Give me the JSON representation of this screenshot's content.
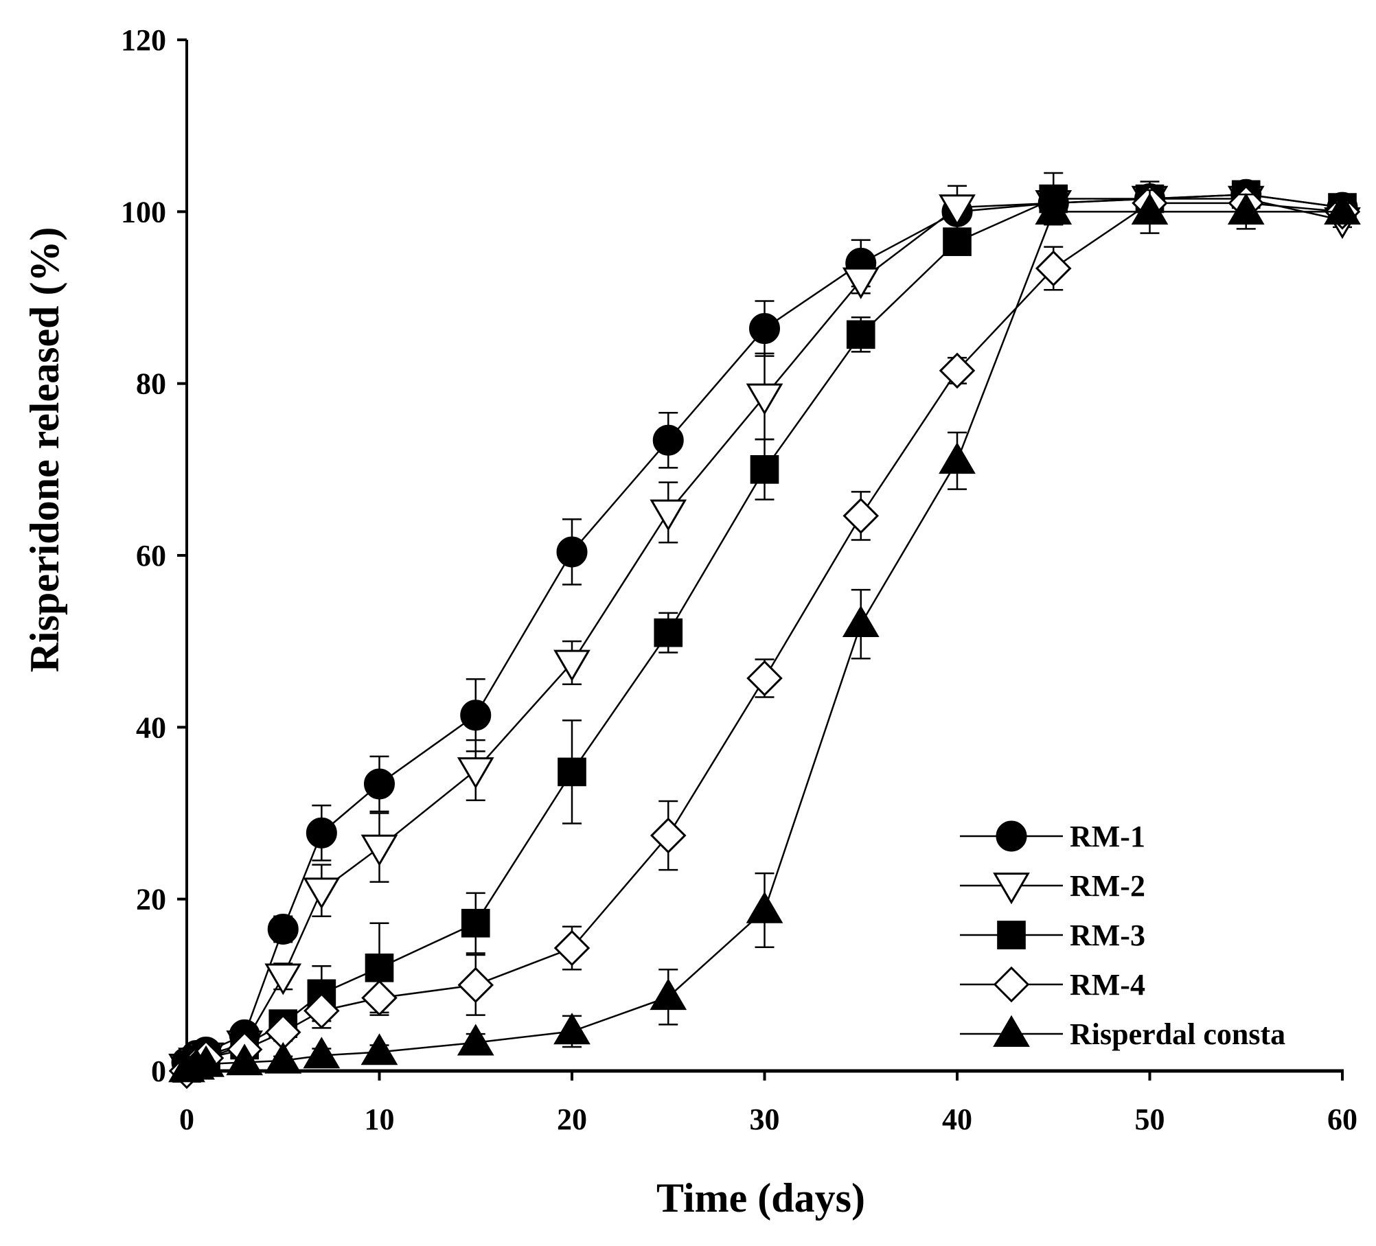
{
  "chart_data": {
    "type": "line",
    "title": "",
    "xlabel": "Time (days)",
    "ylabel": "Risperidone released (%)",
    "xlim": [
      0,
      60
    ],
    "ylim": [
      0,
      120
    ],
    "xticks": [
      0,
      10,
      20,
      30,
      40,
      50,
      60
    ],
    "yticks": [
      0,
      20,
      40,
      60,
      80,
      100,
      120
    ],
    "grid": false,
    "legend_position": "bottom-right",
    "series": [
      {
        "name": "RM-1",
        "marker": "circle-filled",
        "x": [
          0,
          0.5,
          1,
          3,
          5,
          7,
          10,
          15,
          20,
          25,
          30,
          35,
          40,
          45,
          50,
          55,
          60
        ],
        "y": [
          1.0,
          1.8,
          2.2,
          4.2,
          16.5,
          27.7,
          33.4,
          41.4,
          60.4,
          73.4,
          86.4,
          94.0,
          100.0,
          101.0,
          101.5,
          102.0,
          100.5
        ],
        "err": [
          0.5,
          0.5,
          0.5,
          0.8,
          1.5,
          3.2,
          3.2,
          4.2,
          3.8,
          3.2,
          3.2,
          2.7,
          0.7,
          1.5,
          1.5,
          0.8,
          0.8
        ]
      },
      {
        "name": "RM-2",
        "marker": "triangle-down-open",
        "x": [
          0,
          0.5,
          1,
          3,
          5,
          7,
          10,
          15,
          20,
          25,
          30,
          35,
          40,
          45,
          50,
          55,
          60
        ],
        "y": [
          0.5,
          1.2,
          1.8,
          3.2,
          11.0,
          21.0,
          26.0,
          35.0,
          47.5,
          65.0,
          78.5,
          92.0,
          100.5,
          101.0,
          101.5,
          101.5,
          99.0
        ],
        "err": [
          0.3,
          0.4,
          0.5,
          0.7,
          1.5,
          3.0,
          4.0,
          3.5,
          2.5,
          3.5,
          5.0,
          1.5,
          2.5,
          1.5,
          1.5,
          1.0,
          0.8
        ]
      },
      {
        "name": "RM-3",
        "marker": "square-filled",
        "x": [
          0,
          0.5,
          1,
          3,
          5,
          7,
          10,
          15,
          20,
          25,
          30,
          35,
          40,
          45,
          50,
          55,
          60
        ],
        "y": [
          0.3,
          1.0,
          1.5,
          3.0,
          5.5,
          9.0,
          12.0,
          17.2,
          34.8,
          51.0,
          70.0,
          85.7,
          96.5,
          101.5,
          101.5,
          102.0,
          100.5
        ],
        "err": [
          0.3,
          0.3,
          0.4,
          0.8,
          1.2,
          3.2,
          5.2,
          3.5,
          6.0,
          2.3,
          3.5,
          2.0,
          1.0,
          3.0,
          2.0,
          1.0,
          1.0
        ]
      },
      {
        "name": "RM-4",
        "marker": "diamond-open",
        "x": [
          0,
          0.5,
          1,
          3,
          5,
          7,
          10,
          15,
          20,
          25,
          30,
          35,
          40,
          45,
          50,
          55,
          60
        ],
        "y": [
          0.0,
          0.8,
          1.5,
          2.5,
          4.5,
          7.0,
          8.5,
          10.0,
          14.3,
          27.4,
          45.7,
          64.6,
          81.5,
          93.4,
          101.0,
          101.0,
          100.0
        ],
        "err": [
          0.2,
          0.3,
          0.4,
          0.5,
          1.0,
          2.0,
          2.0,
          3.5,
          2.5,
          4.0,
          2.2,
          2.8,
          1.5,
          2.5,
          2.0,
          1.5,
          1.0
        ]
      },
      {
        "name": "Risperdal consta",
        "marker": "triangle-up-filled",
        "x": [
          0,
          0.5,
          1,
          3,
          5,
          7,
          10,
          15,
          20,
          25,
          30,
          35,
          40,
          45,
          50,
          55,
          60
        ],
        "y": [
          0.2,
          0.5,
          0.8,
          1.0,
          1.2,
          1.8,
          2.2,
          3.3,
          4.6,
          8.6,
          18.7,
          52.0,
          71.0,
          100.0,
          100.0,
          100.0,
          100.0
        ],
        "err": [
          0.2,
          0.2,
          0.3,
          0.4,
          0.5,
          0.8,
          0.8,
          1.0,
          1.8,
          3.2,
          4.3,
          4.0,
          3.3,
          1.5,
          2.5,
          2.0,
          1.0
        ]
      }
    ]
  }
}
